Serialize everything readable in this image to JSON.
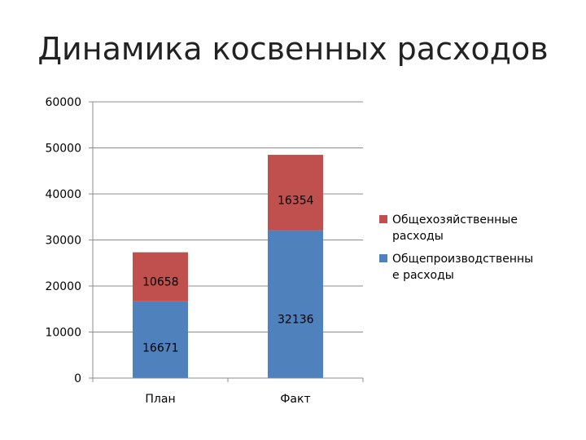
{
  "slide": {
    "title": "Динамика косвенных расходов"
  },
  "chart_data": {
    "type": "stacked-bar",
    "categories": [
      "План",
      "Факт"
    ],
    "series": [
      {
        "name": "Общепроизводственны е расходы",
        "legend_lines": [
          "Общепроизводственны",
          "е расходы"
        ],
        "values": [
          16671,
          32136
        ],
        "color": "#4F81BD"
      },
      {
        "name": "Общехозяйственные расходы",
        "legend_lines": [
          "Общехозяйственные",
          "расходы"
        ],
        "values": [
          10658,
          16354
        ],
        "color": "#C0504D"
      }
    ],
    "ylim": [
      0,
      60000
    ],
    "yticks": [
      0,
      10000,
      20000,
      30000,
      40000,
      50000,
      60000
    ],
    "grid": true,
    "legend_position": "right",
    "xlabel": "",
    "ylabel": ""
  }
}
